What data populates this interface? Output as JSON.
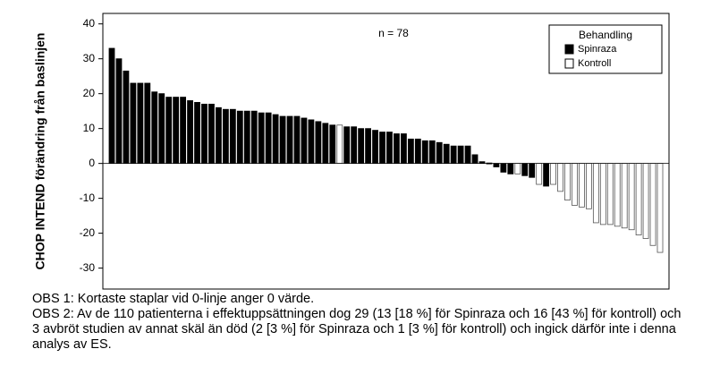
{
  "chart_data": {
    "type": "bar",
    "y_label": "CHOP INTEND förändring från baslinjen",
    "annotation": "n = 78",
    "legend_title": "Behandling",
    "legend": "upper right",
    "ylim": [
      -36,
      43
    ],
    "yticks": [
      -30,
      -20,
      -10,
      0,
      10,
      20,
      30,
      40
    ],
    "series": [
      {
        "name": "Spinraza",
        "color": "#000000",
        "values": [
          33,
          30,
          26.5,
          23,
          23,
          23,
          20.5,
          20,
          19,
          19,
          19,
          18,
          17.5,
          17,
          17,
          16,
          15.5,
          15.5,
          15,
          15,
          15,
          14.5,
          14.5,
          14,
          13.5,
          13.5,
          13.5,
          13,
          12.5,
          12,
          11.5,
          11,
          null,
          10.5,
          10.5,
          10,
          10,
          9.5,
          9,
          9,
          8.5,
          8.5,
          7,
          7,
          6.5,
          6.5,
          6,
          5.5,
          5,
          5,
          5,
          2.5,
          0.5,
          0,
          -1,
          -2.5,
          -3,
          null,
          -3.5,
          -4,
          null,
          -6.5,
          null,
          null,
          null,
          null,
          null,
          null,
          null,
          null,
          null,
          null,
          null,
          null,
          null,
          null,
          null,
          null
        ]
      },
      {
        "name": "Kontroll",
        "color": "#ffffff",
        "values": [
          null,
          null,
          null,
          null,
          null,
          null,
          null,
          null,
          null,
          null,
          null,
          null,
          null,
          null,
          null,
          null,
          null,
          null,
          null,
          null,
          null,
          null,
          null,
          null,
          null,
          null,
          null,
          null,
          null,
          null,
          null,
          null,
          11,
          null,
          null,
          null,
          null,
          null,
          null,
          null,
          null,
          null,
          null,
          null,
          null,
          null,
          null,
          null,
          null,
          null,
          null,
          null,
          null,
          null,
          null,
          null,
          null,
          -3,
          null,
          null,
          -6,
          null,
          -6,
          -8,
          -10.5,
          -12,
          -12.5,
          -13,
          -17,
          -17.5,
          -17.5,
          -18,
          -18.5,
          -19,
          -20.5,
          -21.5,
          -23.5,
          -25.5
        ]
      }
    ]
  },
  "notes": [
    "OBS 1: Kortaste staplar vid 0-linje anger 0 värde.",
    "OBS 2: Av de 110 patienterna i effektuppsättningen dog 29 (13 [18 %] för Spinraza och 16 [43 %] för kontroll) och 3 avbröt studien av annat skäl än död (2 [3 %] för Spinraza och 1 [3 %] för kontroll) och ingick därför inte i denna analys av ES."
  ]
}
